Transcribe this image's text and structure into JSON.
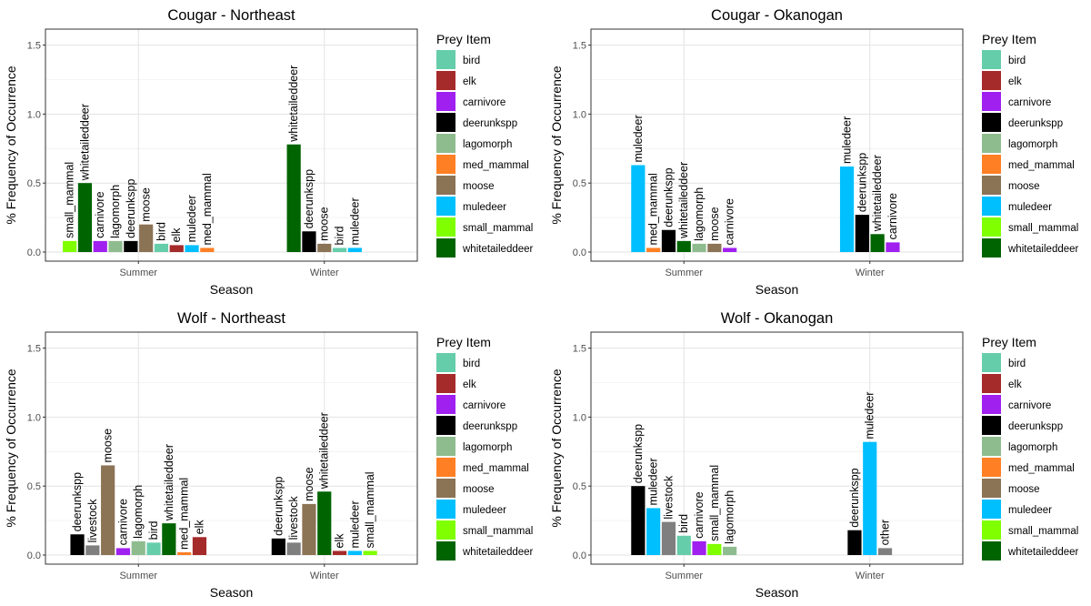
{
  "colors": {
    "bird": "#66CDAA",
    "elk": "#A52A2A",
    "carnivore": "#A020F0",
    "deerunkspp": "#000000",
    "lagomorph": "#8FBC8F",
    "med_mammal": "#FF7F24",
    "moose": "#8B7355",
    "muledeer": "#00BFFF",
    "small_mammal": "#7FFF00",
    "whitetaileddeer": "#006400",
    "livestock": "#7F7F7F",
    "other": "#7F7F7F"
  },
  "legend": {
    "title": "Prey Item",
    "items": [
      "bird",
      "elk",
      "carnivore",
      "deerunkspp",
      "lagomorph",
      "med_mammal",
      "moose",
      "muledeer",
      "small_mammal",
      "whitetaileddeer"
    ]
  },
  "chart_data": [
    {
      "type": "bar",
      "title": "Cougar - Northeast",
      "xlabel": "Season",
      "ylabel": "% Frequency of Occurrence",
      "ylim": [
        0,
        1.55
      ],
      "yticks": [
        "0.0",
        "0.5",
        "1.0",
        "1.5"
      ],
      "categories": [
        "Summer",
        "Winter"
      ],
      "legend_position": "right",
      "grid": true,
      "groups": [
        {
          "season": "Summer",
          "bars": [
            {
              "label": "small_mammal",
              "value": 0.08
            },
            {
              "label": "whitetaileddeer",
              "value": 0.5
            },
            {
              "label": "carnivore",
              "value": 0.08
            },
            {
              "label": "lagomorph",
              "value": 0.08
            },
            {
              "label": "deerunkspp",
              "value": 0.08
            },
            {
              "label": "moose",
              "value": 0.2
            },
            {
              "label": "bird",
              "value": 0.06
            },
            {
              "label": "elk",
              "value": 0.05
            },
            {
              "label": "muledeer",
              "value": 0.05
            },
            {
              "label": "med_mammal",
              "value": 0.03
            }
          ]
        },
        {
          "season": "Winter",
          "bars": [
            {
              "label": "whitetaileddeer",
              "value": 0.78
            },
            {
              "label": "deerunkspp",
              "value": 0.15
            },
            {
              "label": "moose",
              "value": 0.06
            },
            {
              "label": "bird",
              "value": 0.03
            },
            {
              "label": "muledeer",
              "value": 0.03
            }
          ]
        }
      ]
    },
    {
      "type": "bar",
      "title": "Cougar - Okanogan",
      "xlabel": "Season",
      "ylabel": "% Frequency of Occurrence",
      "ylim": [
        0,
        1.55
      ],
      "yticks": [
        "0.0",
        "0.5",
        "1.0",
        "1.5"
      ],
      "categories": [
        "Summer",
        "Winter"
      ],
      "legend_position": "right",
      "grid": true,
      "groups": [
        {
          "season": "Summer",
          "bars": [
            {
              "label": "muledeer",
              "value": 0.63
            },
            {
              "label": "med_mammal",
              "value": 0.03
            },
            {
              "label": "deerunkspp",
              "value": 0.16
            },
            {
              "label": "whitetaileddeer",
              "value": 0.08
            },
            {
              "label": "lagomorph",
              "value": 0.06
            },
            {
              "label": "moose",
              "value": 0.06
            },
            {
              "label": "carnivore",
              "value": 0.03
            }
          ]
        },
        {
          "season": "Winter",
          "bars": [
            {
              "label": "muledeer",
              "value": 0.62
            },
            {
              "label": "deerunkspp",
              "value": 0.27
            },
            {
              "label": "whitetaileddeer",
              "value": 0.13
            },
            {
              "label": "carnivore",
              "value": 0.07
            }
          ]
        }
      ]
    },
    {
      "type": "bar",
      "title": "Wolf - Northeast",
      "xlabel": "Season",
      "ylabel": "% Frequency of Occurrence",
      "ylim": [
        0,
        1.55
      ],
      "yticks": [
        "0.0",
        "0.5",
        "1.0",
        "1.5"
      ],
      "categories": [
        "Summer",
        "Winter"
      ],
      "legend_position": "right",
      "grid": true,
      "groups": [
        {
          "season": "Summer",
          "bars": [
            {
              "label": "deerunkspp",
              "value": 0.15
            },
            {
              "label": "livestock",
              "value": 0.07
            },
            {
              "label": "moose",
              "value": 0.65
            },
            {
              "label": "carnivore",
              "value": 0.05
            },
            {
              "label": "lagomorph",
              "value": 0.1
            },
            {
              "label": "bird",
              "value": 0.09
            },
            {
              "label": "whitetaileddeer",
              "value": 0.23
            },
            {
              "label": "med_mammal",
              "value": 0.02
            },
            {
              "label": "elk",
              "value": 0.13
            }
          ]
        },
        {
          "season": "Winter",
          "bars": [
            {
              "label": "deerunkspp",
              "value": 0.12
            },
            {
              "label": "livestock",
              "value": 0.09
            },
            {
              "label": "moose",
              "value": 0.37
            },
            {
              "label": "whitetaileddeer",
              "value": 0.46
            },
            {
              "label": "elk",
              "value": 0.03
            },
            {
              "label": "muledeer",
              "value": 0.03
            },
            {
              "label": "small_mammal",
              "value": 0.03
            }
          ]
        }
      ]
    },
    {
      "type": "bar",
      "title": "Wolf - Okanogan",
      "xlabel": "Season",
      "ylabel": "% Frequency of Occurrence",
      "ylim": [
        0,
        1.55
      ],
      "yticks": [
        "0.0",
        "0.5",
        "1.0",
        "1.5"
      ],
      "categories": [
        "Summer",
        "Winter"
      ],
      "legend_position": "right",
      "grid": true,
      "groups": [
        {
          "season": "Summer",
          "bars": [
            {
              "label": "deerunkspp",
              "value": 0.5
            },
            {
              "label": "muledeer",
              "value": 0.34
            },
            {
              "label": "livestock",
              "value": 0.24
            },
            {
              "label": "bird",
              "value": 0.14
            },
            {
              "label": "carnivore",
              "value": 0.1
            },
            {
              "label": "small_mammal",
              "value": 0.08
            },
            {
              "label": "lagomorph",
              "value": 0.06
            }
          ]
        },
        {
          "season": "Winter",
          "bars": [
            {
              "label": "deerunkspp",
              "value": 0.18
            },
            {
              "label": "muledeer",
              "value": 0.82
            },
            {
              "label": "other",
              "value": 0.05
            }
          ]
        }
      ]
    }
  ]
}
